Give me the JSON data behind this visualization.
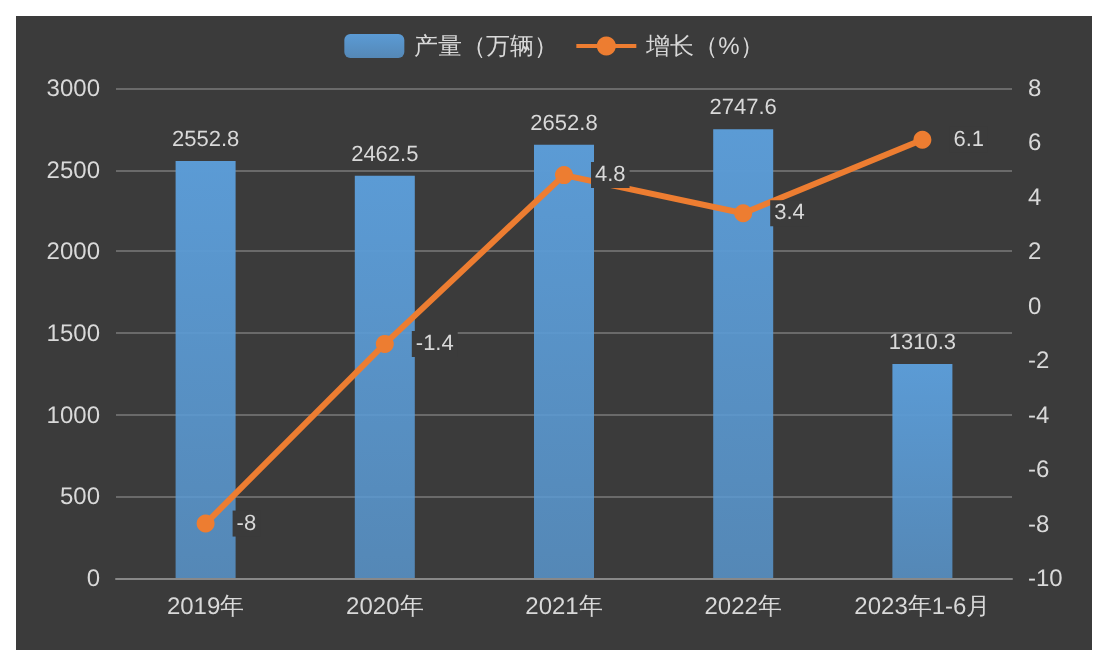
{
  "chart_data": {
    "type": "bar",
    "categories": [
      "2019年",
      "2020年",
      "2021年",
      "2022年",
      "2023年1-6月"
    ],
    "series": [
      {
        "name": "产量（万辆）",
        "color": "#5b9bd5",
        "values": [
          2552.8,
          2462.5,
          2652.8,
          2747.6,
          1310.3
        ]
      },
      {
        "name": "增长（%）",
        "type": "line",
        "axis": "y2",
        "color": "#ed7d31",
        "marker": "circle",
        "values": [
          -8,
          -1.4,
          4.8,
          3.4,
          6.1
        ]
      }
    ],
    "ylim": [
      0,
      3000
    ],
    "yticks": [
      0,
      500,
      1000,
      1500,
      2000,
      2500,
      3000
    ],
    "y2lim": [
      -10,
      8
    ],
    "y2ticks": [
      -10,
      -8,
      -6,
      -4,
      -2,
      0,
      2,
      4,
      6,
      8
    ],
    "grid": "y",
    "legend": "top",
    "data_labels": true
  }
}
